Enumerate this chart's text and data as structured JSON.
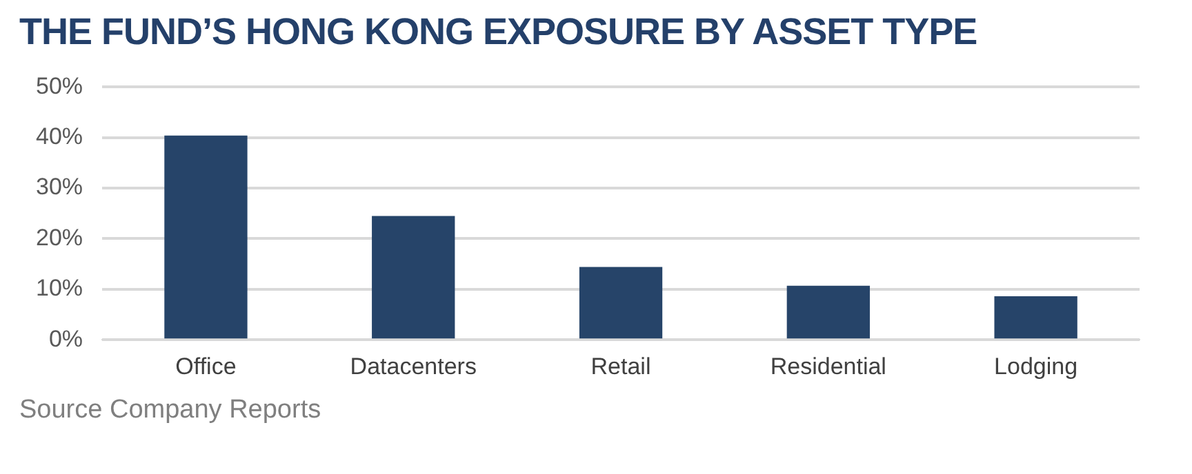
{
  "chart_data": {
    "type": "bar",
    "title": "THE FUND’S HONG KONG EXPOSURE BY ASSET TYPE",
    "categories": [
      "Office",
      "Datacenters",
      "Retail",
      "Residential",
      "Lodging"
    ],
    "values": [
      40.4,
      24.5,
      14.4,
      10.7,
      8.6
    ],
    "color": "#264469",
    "ylim": [
      0,
      50
    ],
    "yticks": [
      {
        "value": 0,
        "label": "0%"
      },
      {
        "value": 10,
        "label": "10%"
      },
      {
        "value": 20,
        "label": "20%"
      },
      {
        "value": 30,
        "label": "30%"
      },
      {
        "value": 40,
        "label": "40%"
      },
      {
        "value": 50,
        "label": "50%"
      }
    ],
    "grid": "y",
    "legend": false,
    "annotations": [
      "Source Company Reports"
    ]
  }
}
